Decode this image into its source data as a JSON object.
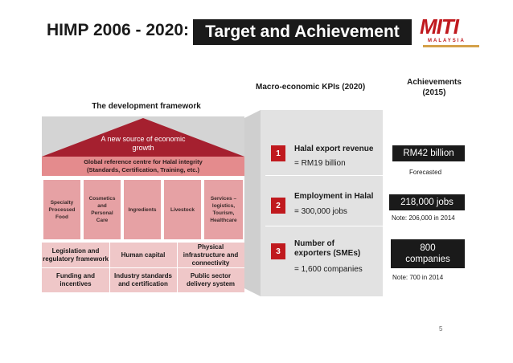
{
  "header": {
    "title_left": "HIMP 2006 - 2020:",
    "title_highlight": "Target and Achievement",
    "logo_mark": "MITI",
    "logo_sub": "MALAYSIA"
  },
  "framework": {
    "title": "The development framework",
    "roof_text_line1": "A new source of economic",
    "roof_text_line2": "growth",
    "global_line1": "Global reference centre for Halal integrity",
    "global_line2": "(Standards, Certification, Training, etc.)",
    "pillars": [
      {
        "lines": [
          "Specialty",
          "Processed",
          "Food"
        ]
      },
      {
        "lines": [
          "Cosmetics",
          "and",
          "Personal",
          "Care"
        ]
      },
      {
        "lines": [
          "Ingredients"
        ]
      },
      {
        "lines": [
          "Livestock"
        ]
      },
      {
        "lines": [
          "Services –",
          "logistics,",
          "Tourism,",
          "Healthcare"
        ]
      }
    ],
    "foundation": [
      {
        "line1": "Legislation and",
        "line2": "regulatory framework"
      },
      {
        "line1": "Human capital",
        "line2": ""
      },
      {
        "line1": "Physical",
        "line2": "infrastructure and",
        "line3": "connectivity"
      },
      {
        "line1": "Funding and",
        "line2": "incentives"
      },
      {
        "line1": "Industry standards",
        "line2": "and certification"
      },
      {
        "line1": "Public sector",
        "line2": "delivery system"
      }
    ]
  },
  "kpis": {
    "header": "Macro-economic KPIs (2020)",
    "items": [
      {
        "num": "1",
        "title_line1": "Halal export revenue",
        "title_line2": "",
        "value": "= RM19 billion"
      },
      {
        "num": "2",
        "title_line1": "Employment in Halal",
        "title_line2": "",
        "value": "= 300,000 jobs"
      },
      {
        "num": "3",
        "title_line1": "Number of",
        "title_line2": "exporters (SMEs)",
        "value": "= 1,600 companies"
      }
    ]
  },
  "achievements": {
    "header_line1": "Achievements",
    "header_line2": "(2015)",
    "items": [
      {
        "value_line1": "RM42 billion",
        "value_line2": "",
        "note": "Forecasted"
      },
      {
        "value_line1": "218,000 jobs",
        "value_line2": "",
        "note": "Note: 206,000 in 2014"
      },
      {
        "value_line1": "800",
        "value_line2": "companies",
        "note": "Note: 700 in 2014"
      }
    ]
  },
  "footer": {
    "page_number": "5"
  },
  "colors": {
    "accent_red": "#c0191e",
    "roof_red": "#a5202f",
    "global_band": "#e48b8d",
    "pillar": "#e6a1a4",
    "foundation": "#efc7c8",
    "panel_gray": "#e2e2e2",
    "achievement_box": "#1a1a1a"
  }
}
